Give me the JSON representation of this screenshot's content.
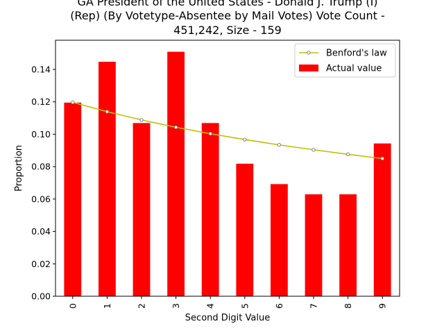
{
  "chart_data": {
    "type": "bar",
    "title_lines": [
      "GA President of the United States - Donald J. Trump (I)",
      "(Rep) (By Votetype-Absentee by Mail Votes) Vote Count -",
      "451,242, Size - 159"
    ],
    "xlabel": "Second Digit Value",
    "ylabel": "Proportion",
    "categories": [
      "0",
      "1",
      "2",
      "3",
      "4",
      "5",
      "6",
      "7",
      "8",
      "9"
    ],
    "ylim": [
      0,
      0.158
    ],
    "yticks": [
      0.0,
      0.02,
      0.04,
      0.06,
      0.08,
      0.1,
      0.12,
      0.14
    ],
    "ytick_labels": [
      "0.00",
      "0.02",
      "0.04",
      "0.06",
      "0.08",
      "0.10",
      "0.12",
      "0.14"
    ],
    "grid": false,
    "legend_position": "top-right",
    "series": [
      {
        "name": "Actual value",
        "type": "bar",
        "color": "#ff0000",
        "values": [
          0.1195,
          0.1447,
          0.1069,
          0.1509,
          0.1069,
          0.0818,
          0.0692,
          0.0629,
          0.0629,
          0.0943
        ]
      },
      {
        "name": "Benford's law",
        "type": "line",
        "color": "#bfbf00",
        "marker_color": "#808080",
        "values": [
          0.1197,
          0.1139,
          0.1088,
          0.1043,
          0.1003,
          0.0967,
          0.0934,
          0.0904,
          0.0876,
          0.085
        ]
      }
    ]
  }
}
